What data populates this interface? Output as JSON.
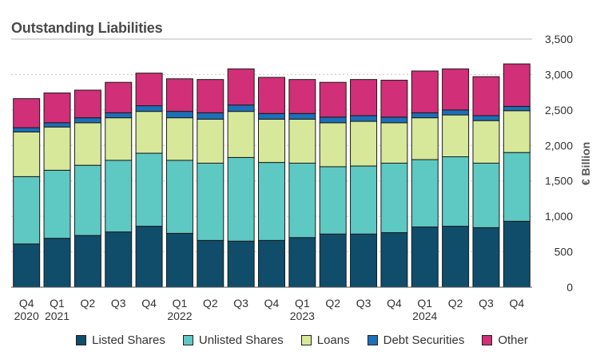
{
  "chart_data": {
    "type": "bar",
    "stacked": true,
    "title": "Outstanding Liabilities",
    "ylabel": "€ Billion",
    "xlabel": "",
    "ylim": [
      0,
      3500
    ],
    "yticks": [
      "0",
      "500",
      "1,000",
      "1,500",
      "2,000",
      "2,500",
      "3,000",
      "3,500"
    ],
    "ytick_values": [
      0,
      500,
      1000,
      1500,
      2000,
      2500,
      3000,
      3500
    ],
    "grid": true,
    "legend_position": "bottom",
    "categories": [
      {
        "quarter": "Q4",
        "year": "2020"
      },
      {
        "quarter": "Q1",
        "year": "2021"
      },
      {
        "quarter": "Q2",
        "year": ""
      },
      {
        "quarter": "Q3",
        "year": ""
      },
      {
        "quarter": "Q4",
        "year": ""
      },
      {
        "quarter": "Q1",
        "year": "2022"
      },
      {
        "quarter": "Q2",
        "year": ""
      },
      {
        "quarter": "Q3",
        "year": ""
      },
      {
        "quarter": "Q4",
        "year": ""
      },
      {
        "quarter": "Q1",
        "year": "2023"
      },
      {
        "quarter": "Q2",
        "year": ""
      },
      {
        "quarter": "Q3",
        "year": ""
      },
      {
        "quarter": "Q4",
        "year": ""
      },
      {
        "quarter": "Q1",
        "year": "2024"
      },
      {
        "quarter": "Q2",
        "year": ""
      },
      {
        "quarter": "Q3",
        "year": ""
      },
      {
        "quarter": "Q4",
        "year": ""
      }
    ],
    "series": [
      {
        "name": "Listed Shares",
        "color": "#0f4d6b",
        "values": [
          610,
          690,
          730,
          780,
          860,
          760,
          660,
          650,
          660,
          700,
          750,
          750,
          770,
          850,
          860,
          840,
          930
        ]
      },
      {
        "name": "Unlisted Shares",
        "color": "#5ec8c3",
        "values": [
          950,
          960,
          990,
          1010,
          1030,
          1030,
          1090,
          1180,
          1100,
          1050,
          950,
          960,
          980,
          950,
          980,
          910,
          970
        ]
      },
      {
        "name": "Loans",
        "color": "#d8e89a",
        "values": [
          630,
          610,
          600,
          600,
          590,
          600,
          620,
          650,
          610,
          620,
          620,
          630,
          570,
          590,
          590,
          600,
          590
        ]
      },
      {
        "name": "Debt Securities",
        "color": "#1d6fb8",
        "values": [
          60,
          60,
          70,
          70,
          80,
          90,
          90,
          90,
          80,
          80,
          80,
          80,
          80,
          70,
          70,
          70,
          60
        ]
      },
      {
        "name": "Other",
        "color": "#d12f78",
        "values": [
          410,
          420,
          390,
          430,
          460,
          460,
          470,
          510,
          510,
          480,
          490,
          510,
          520,
          590,
          580,
          550,
          600
        ]
      }
    ]
  }
}
